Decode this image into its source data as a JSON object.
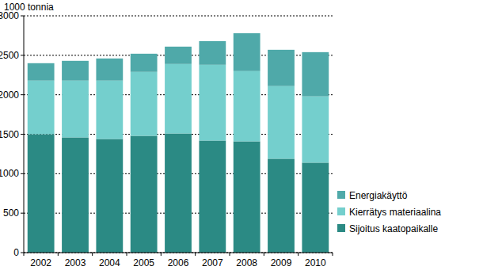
{
  "chart_data": {
    "type": "bar",
    "stacked": true,
    "y_label": "1000 tonnia",
    "categories": [
      "2002",
      "2003",
      "2004",
      "2005",
      "2006",
      "2007",
      "2008",
      "2009",
      "2010"
    ],
    "series": [
      {
        "name": "Sijoitus kaatopaikalle",
        "color": "#2b8a84",
        "values": [
          1500,
          1460,
          1440,
          1480,
          1510,
          1420,
          1410,
          1190,
          1140
        ]
      },
      {
        "name": "Kierrätys materiaalina",
        "color": "#74cfcd",
        "values": [
          680,
          720,
          740,
          810,
          880,
          960,
          890,
          920,
          840
        ]
      },
      {
        "name": "Energiakäyttö",
        "color": "#4fa9a9",
        "values": [
          220,
          250,
          280,
          230,
          220,
          300,
          480,
          460,
          560
        ]
      }
    ],
    "ylim": [
      0,
      3000
    ],
    "yticks": [
      0,
      500,
      1000,
      1500,
      2000,
      2500,
      3000
    ],
    "grid": true,
    "legend": "right"
  }
}
